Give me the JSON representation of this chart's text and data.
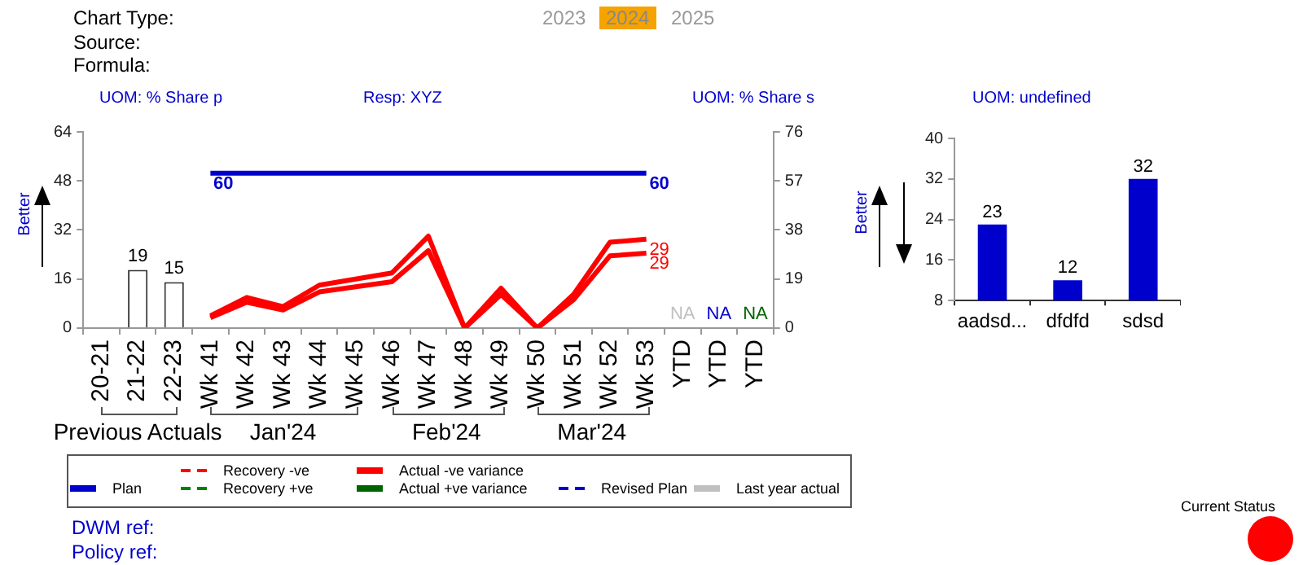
{
  "chart_data": [
    {
      "type": "bar",
      "ylabel": "Better",
      "categories": [
        "20-21",
        "21-22",
        "22-23",
        "Wk 41",
        "Wk 42",
        "Wk 43",
        "Wk 44",
        "Wk 45",
        "Wk 46",
        "Wk 47",
        "Wk 48",
        "Wk 49",
        "Wk 50",
        "Wk 51",
        "Wk 52",
        "Wk 53",
        "YTD",
        "YTD",
        "YTD"
      ],
      "ylim": [
        0,
        64
      ],
      "yticks": [
        0,
        16,
        32,
        48,
        64
      ],
      "y2lim": [
        0,
        76
      ],
      "y2ticks": [
        0,
        19,
        38,
        57,
        76
      ],
      "grid": false,
      "legend": "bottom",
      "marker": "none",
      "annotations": [
        "Chart Type:",
        "Source:",
        "Formula:",
        "2023",
        "2024",
        "2025",
        "UOM: % Share p",
        "Resp: XYZ",
        "UOM: % Share s",
        "Previous Actuals",
        "Jan'24",
        "Feb'24",
        "Mar'24",
        "DWM ref:",
        "Policy ref:",
        "Current Status"
      ],
      "series": [
        {
          "type": "bar",
          "color": "#ffffff",
          "values": [
            null,
            19,
            15,
            null,
            null,
            null,
            null,
            null,
            null,
            null,
            null,
            null,
            null,
            null,
            null,
            null,
            null,
            null,
            null
          ],
          "value_labels": [
            null,
            "19",
            "15",
            null,
            null,
            null,
            null,
            null,
            null,
            null,
            null,
            null,
            null,
            null,
            null,
            null,
            null,
            null,
            null
          ]
        },
        {
          "name": "Plan",
          "type": "line",
          "axis": "y2",
          "color": "#0000cc",
          "values": [
            null,
            null,
            null,
            60,
            60,
            60,
            60,
            60,
            60,
            60,
            60,
            60,
            60,
            60,
            60,
            60,
            null,
            null,
            null
          ],
          "value_labels": [
            null,
            null,
            null,
            "60",
            null,
            null,
            null,
            null,
            null,
            null,
            null,
            null,
            null,
            null,
            null,
            "60",
            null,
            null,
            null
          ]
        },
        {
          "name": "Recovery -ve",
          "type": "line",
          "color": "#ff0000",
          "line_style": "dashed",
          "values": [
            null,
            null,
            null,
            null,
            null,
            null,
            null,
            null,
            null,
            null,
            null,
            null,
            null,
            null,
            null,
            null,
            null,
            null,
            null
          ]
        },
        {
          "name": "Recovery +ve",
          "type": "line",
          "color": "#008000",
          "line_style": "dashed",
          "values": [
            null,
            null,
            null,
            null,
            null,
            null,
            null,
            null,
            null,
            null,
            null,
            null,
            null,
            null,
            null,
            null,
            null,
            null,
            null
          ]
        },
        {
          "type": "line",
          "color": "#ff0000",
          "values": [
            null,
            null,
            null,
            4,
            10,
            7,
            14,
            16,
            18,
            30,
            0,
            13,
            0,
            11,
            28,
            29,
            null,
            null,
            null
          ],
          "value_labels": [
            null,
            null,
            null,
            null,
            null,
            null,
            null,
            null,
            null,
            null,
            null,
            null,
            null,
            null,
            null,
            "29",
            null,
            null,
            null
          ]
        },
        {
          "name": "Actual -ve variance",
          "type": "line",
          "axis": "y2",
          "color": "#ff0000",
          "values": [
            null,
            null,
            null,
            4,
            10,
            7,
            14,
            16,
            18,
            30,
            0,
            13,
            0,
            11,
            28,
            29,
            null,
            null,
            null
          ],
          "value_labels": [
            null,
            null,
            null,
            null,
            null,
            null,
            null,
            null,
            null,
            null,
            null,
            null,
            null,
            null,
            null,
            "29",
            null,
            null,
            null
          ]
        },
        {
          "name": "Actual +ve variance",
          "type": "line",
          "color": "#006400",
          "values": [
            null,
            null,
            null,
            null,
            null,
            null,
            null,
            null,
            null,
            null,
            null,
            null,
            null,
            null,
            null,
            null,
            null,
            null,
            null
          ],
          "value_labels": [
            null,
            null,
            null,
            null,
            null,
            null,
            null,
            null,
            null,
            null,
            null,
            null,
            null,
            null,
            null,
            null,
            null,
            null,
            "NA"
          ]
        },
        {
          "name": "Revised Plan",
          "type": "line",
          "color": "#0000cc",
          "line_style": "dashed",
          "values": [
            null,
            null,
            null,
            null,
            null,
            null,
            null,
            null,
            null,
            null,
            null,
            null,
            null,
            null,
            null,
            null,
            null,
            null,
            null
          ],
          "value_labels": [
            null,
            null,
            null,
            null,
            null,
            null,
            null,
            null,
            null,
            null,
            null,
            null,
            null,
            null,
            null,
            null,
            null,
            "NA",
            null
          ]
        },
        {
          "name": "Last year actual",
          "type": "line",
          "color": "#c0c0c0",
          "values": [
            null,
            null,
            null,
            null,
            null,
            null,
            null,
            null,
            null,
            null,
            null,
            null,
            null,
            null,
            null,
            null,
            null,
            null,
            null
          ],
          "value_labels": [
            null,
            null,
            null,
            null,
            null,
            null,
            null,
            null,
            null,
            null,
            null,
            null,
            null,
            null,
            null,
            null,
            "NA",
            null,
            null
          ]
        }
      ]
    },
    {
      "type": "bar",
      "ylabel": "Better",
      "categories": [
        "aadsd...",
        "dfdfd",
        "sdsd"
      ],
      "values": [
        23,
        12,
        32
      ],
      "color": "#0000cc",
      "ylim": [
        8,
        40
      ],
      "yticks": [
        8,
        16,
        24,
        32,
        40
      ],
      "grid": false,
      "data_labels": true,
      "annotations": [
        "UOM: undefined"
      ]
    }
  ]
}
